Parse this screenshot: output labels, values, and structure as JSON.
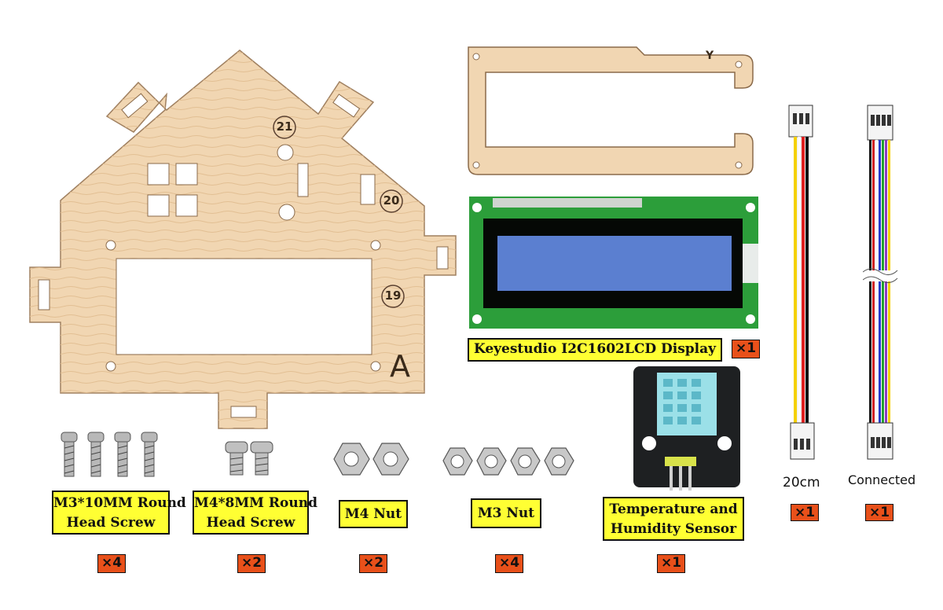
{
  "panel": {
    "engravings": {
      "n21": "21",
      "n20": "20",
      "n19": "19",
      "letter": "A"
    }
  },
  "bracket": {
    "engraving": "Y"
  },
  "lcd": {
    "label": "Keyestudio I2C1602LCD Display",
    "qty": "×1"
  },
  "cable_short": {
    "caption": "20cm",
    "qty": "×1"
  },
  "cable_connected": {
    "caption": "Connected",
    "qty": "×1"
  },
  "m3_screw": {
    "label_line1": "M3*10MM Round",
    "label_line2": "Head Screw",
    "qty": "×4"
  },
  "m4_screw": {
    "label_line1": "M4*8MM Round",
    "label_line2": "Head Screw",
    "qty": "×2"
  },
  "m4_nut": {
    "label": "M4 Nut",
    "qty": "×2"
  },
  "m3_nut": {
    "label": "M3 Nut",
    "qty": "×4"
  },
  "sensor": {
    "label_line1": "Temperature and",
    "label_line2": "Humidity Sensor",
    "qty": "×1"
  },
  "colors": {
    "wood": "#f1d6b2",
    "wood_edge": "#8a6a4a",
    "label_bg": "#ffff33",
    "qty_bg": "#e8501a",
    "pcb_green": "#2c9e3a",
    "lcd_blue": "#5b7fd0"
  }
}
